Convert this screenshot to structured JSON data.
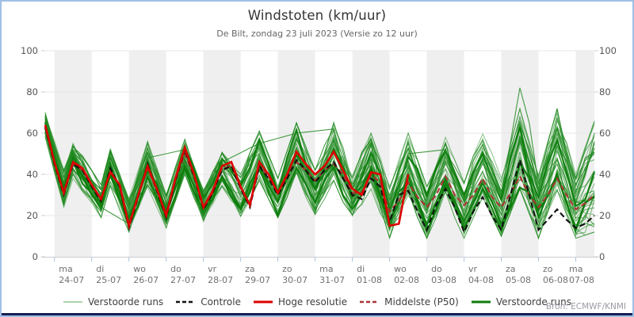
{
  "source_credit": "Bron: ECMWF/KNMI",
  "colors": {
    "frame_border": "#9fc0e6",
    "frame_bottom_bar": "#171f54",
    "day_band": "#efefef",
    "gridline": "#e7e7e7",
    "axis_line": "#c9ccd1",
    "day_tick": "#aac2e0",
    "member_green": "#228b22",
    "member_thick_green": "#0c7d0c",
    "hres_red": "#dd0000",
    "control_black": "#111111",
    "p50_darkred": "#aa3333"
  },
  "legend": {
    "items": [
      {
        "label": "Verstoorde runs",
        "color": "#abd3ab",
        "style": "solid",
        "width": 2
      },
      {
        "label": "Controle",
        "color": "#111111",
        "style": "dashed",
        "width": 2.5
      },
      {
        "label": "Hoge resolutie",
        "color": "#dd0000",
        "style": "solid",
        "width": 3
      },
      {
        "label": "Middelste (P50)",
        "color": "#aa3333",
        "style": "dashed",
        "width": 2.5
      },
      {
        "label": "Verstoorde runs",
        "color": "#0c7d0c",
        "style": "solid",
        "width": 3
      }
    ]
  },
  "chart_data": {
    "type": "line",
    "title": "Windstoten (km/uur)",
    "subtitle": "De Bilt, zondag 23 juli 2023 (Versie zo 12 uur)",
    "ylim": [
      0,
      100
    ],
    "y_ticks": [
      0,
      20,
      40,
      60,
      80,
      100
    ],
    "grid": true,
    "legend_position": "bottom",
    "x_days": [
      {
        "day": "ma",
        "date": "24-07"
      },
      {
        "day": "di",
        "date": "25-07"
      },
      {
        "day": "wo",
        "date": "26-07"
      },
      {
        "day": "do",
        "date": "27-07"
      },
      {
        "day": "vr",
        "date": "28-07"
      },
      {
        "day": "za",
        "date": "29-07"
      },
      {
        "day": "zo",
        "date": "30-07"
      },
      {
        "day": "ma",
        "date": "31-07"
      },
      {
        "day": "di",
        "date": "01-08"
      },
      {
        "day": "wo",
        "date": "02-08"
      },
      {
        "day": "do",
        "date": "03-08"
      },
      {
        "day": "vr",
        "date": "04-08"
      },
      {
        "day": "za",
        "date": "05-08"
      },
      {
        "day": "zo",
        "date": "06-08"
      },
      {
        "day": "ma",
        "date": "07-08"
      }
    ],
    "time": {
      "steps": 60,
      "steps_per_day": 4,
      "first_day_boundary_step": 1,
      "hours_per_step": 6
    },
    "series": [
      {
        "name": "Hoge resolutie",
        "style": "solid",
        "color": "#dd0000",
        "width": 2.6,
        "vertices": [
          [
            0,
            64
          ],
          [
            1,
            46
          ],
          [
            2,
            31
          ],
          [
            3,
            46
          ],
          [
            4,
            43
          ],
          [
            5,
            35
          ],
          [
            6,
            28
          ],
          [
            7,
            41
          ],
          [
            8,
            35
          ],
          [
            9,
            15
          ],
          [
            10,
            30
          ],
          [
            11,
            44
          ],
          [
            12,
            33
          ],
          [
            13,
            20
          ],
          [
            14,
            38
          ],
          [
            15,
            53
          ],
          [
            16,
            40
          ],
          [
            17,
            24
          ],
          [
            18,
            32
          ],
          [
            19,
            44
          ],
          [
            20,
            46
          ],
          [
            21,
            34
          ],
          [
            22,
            25
          ],
          [
            23,
            46
          ],
          [
            24,
            40
          ],
          [
            25,
            31
          ],
          [
            26,
            40
          ],
          [
            27,
            51
          ],
          [
            28,
            45
          ],
          [
            29,
            40
          ],
          [
            30,
            44
          ],
          [
            31,
            51
          ],
          [
            32,
            42
          ],
          [
            33,
            33
          ],
          [
            34,
            30
          ],
          [
            35,
            41
          ],
          [
            36,
            40
          ],
          [
            37,
            15
          ],
          [
            38,
            16
          ],
          [
            39,
            40
          ]
        ]
      },
      {
        "name": "Controle",
        "style": "dashed",
        "color": "#111111",
        "width": 2.1,
        "vertices": [
          [
            0,
            63
          ],
          [
            1,
            45
          ],
          [
            2,
            30
          ],
          [
            3,
            45
          ],
          [
            4,
            42
          ],
          [
            5,
            34
          ],
          [
            6,
            27
          ],
          [
            7,
            43
          ],
          [
            8,
            34
          ],
          [
            9,
            14
          ],
          [
            10,
            29
          ],
          [
            11,
            45
          ],
          [
            12,
            32
          ],
          [
            13,
            19
          ],
          [
            14,
            37
          ],
          [
            15,
            52
          ],
          [
            16,
            39
          ],
          [
            17,
            23
          ],
          [
            18,
            31
          ],
          [
            19,
            42
          ],
          [
            20,
            44
          ],
          [
            21,
            33
          ],
          [
            22,
            24
          ],
          [
            23,
            44
          ],
          [
            24,
            38
          ],
          [
            25,
            30
          ],
          [
            26,
            38
          ],
          [
            27,
            47
          ],
          [
            28,
            42
          ],
          [
            29,
            36
          ],
          [
            30,
            42
          ],
          [
            31,
            46
          ],
          [
            32,
            38
          ],
          [
            33,
            30
          ],
          [
            34,
            28
          ],
          [
            35,
            38
          ],
          [
            36,
            34
          ],
          [
            37,
            17
          ],
          [
            38,
            30
          ],
          [
            39,
            32
          ],
          [
            40,
            22
          ],
          [
            41,
            13
          ],
          [
            42,
            25
          ],
          [
            43,
            33
          ],
          [
            44,
            24
          ],
          [
            45,
            12
          ],
          [
            46,
            22
          ],
          [
            47,
            29
          ],
          [
            48,
            20
          ],
          [
            49,
            13
          ],
          [
            50,
            30
          ],
          [
            51,
            47
          ],
          [
            52,
            30
          ],
          [
            53,
            13
          ],
          [
            54,
            18
          ],
          [
            55,
            23
          ],
          [
            56,
            18
          ],
          [
            57,
            14
          ],
          [
            58,
            16
          ],
          [
            59,
            20
          ]
        ]
      },
      {
        "name": "Middelste (P50)",
        "style": "dashed",
        "color": "#aa3333",
        "width": 2.1,
        "vertices": [
          [
            0,
            63
          ],
          [
            1,
            46
          ],
          [
            2,
            31
          ],
          [
            3,
            45
          ],
          [
            4,
            42
          ],
          [
            5,
            35
          ],
          [
            6,
            28
          ],
          [
            7,
            42
          ],
          [
            8,
            34
          ],
          [
            9,
            16
          ],
          [
            10,
            30
          ],
          [
            11,
            43
          ],
          [
            12,
            32
          ],
          [
            13,
            21
          ],
          [
            14,
            37
          ],
          [
            15,
            50
          ],
          [
            16,
            39
          ],
          [
            17,
            24
          ],
          [
            18,
            31
          ],
          [
            19,
            43
          ],
          [
            20,
            44
          ],
          [
            21,
            33
          ],
          [
            22,
            25
          ],
          [
            23,
            44
          ],
          [
            24,
            39
          ],
          [
            25,
            31
          ],
          [
            26,
            39
          ],
          [
            27,
            46
          ],
          [
            28,
            42
          ],
          [
            29,
            37
          ],
          [
            30,
            42
          ],
          [
            31,
            45
          ],
          [
            32,
            40
          ],
          [
            33,
            31
          ],
          [
            34,
            31
          ],
          [
            35,
            40
          ],
          [
            36,
            36
          ],
          [
            37,
            22
          ],
          [
            38,
            27
          ],
          [
            39,
            36
          ],
          [
            40,
            29
          ],
          [
            41,
            24
          ],
          [
            42,
            30
          ],
          [
            43,
            39
          ],
          [
            44,
            30
          ],
          [
            45,
            25
          ],
          [
            46,
            30
          ],
          [
            47,
            38
          ],
          [
            48,
            29
          ],
          [
            49,
            24
          ],
          [
            50,
            31
          ],
          [
            51,
            39
          ],
          [
            52,
            30
          ],
          [
            53,
            24
          ],
          [
            54,
            30
          ],
          [
            55,
            38
          ],
          [
            56,
            30
          ],
          [
            57,
            23
          ],
          [
            58,
            26
          ],
          [
            59,
            30
          ]
        ]
      }
    ],
    "ensemble": {
      "name": "Verstoorde runs",
      "count": 40,
      "thick_count": 3,
      "color": "#228b22",
      "thick_color": "#0c7d0c",
      "envelope_max": [
        [
          0,
          70
        ],
        [
          2,
          42
        ],
        [
          3,
          56
        ],
        [
          6,
          35
        ],
        [
          7,
          52
        ],
        [
          9,
          28
        ],
        [
          11,
          56
        ],
        [
          13,
          30
        ],
        [
          15,
          57
        ],
        [
          17,
          33
        ],
        [
          19,
          52
        ],
        [
          21,
          40
        ],
        [
          23,
          61
        ],
        [
          25,
          38
        ],
        [
          27,
          65
        ],
        [
          29,
          42
        ],
        [
          31,
          66
        ],
        [
          33,
          40
        ],
        [
          35,
          62
        ],
        [
          37,
          34
        ],
        [
          39,
          60
        ],
        [
          41,
          34
        ],
        [
          43,
          58
        ],
        [
          45,
          36
        ],
        [
          47,
          62
        ],
        [
          49,
          38
        ],
        [
          51,
          72
        ],
        [
          53,
          40
        ],
        [
          55,
          72
        ],
        [
          57,
          40
        ],
        [
          59,
          66
        ]
      ],
      "envelope_min": [
        [
          0,
          58
        ],
        [
          2,
          24
        ],
        [
          3,
          38
        ],
        [
          6,
          19
        ],
        [
          7,
          33
        ],
        [
          9,
          12
        ],
        [
          11,
          34
        ],
        [
          13,
          14
        ],
        [
          15,
          40
        ],
        [
          17,
          17
        ],
        [
          19,
          34
        ],
        [
          21,
          18
        ],
        [
          23,
          37
        ],
        [
          25,
          19
        ],
        [
          27,
          39
        ],
        [
          29,
          19
        ],
        [
          31,
          37
        ],
        [
          33,
          16
        ],
        [
          35,
          33
        ],
        [
          37,
          9
        ],
        [
          39,
          29
        ],
        [
          41,
          9
        ],
        [
          43,
          29
        ],
        [
          45,
          9
        ],
        [
          47,
          29
        ],
        [
          49,
          10
        ],
        [
          51,
          33
        ],
        [
          53,
          9
        ],
        [
          55,
          32
        ],
        [
          57,
          9
        ],
        [
          59,
          12
        ]
      ],
      "outlier_vertices": [
        [
          0,
          67
        ],
        [
          2,
          30
        ],
        [
          3,
          50
        ],
        [
          6,
          24
        ],
        [
          9,
          16
        ],
        [
          11,
          48
        ],
        [
          15,
          52
        ],
        [
          17,
          20
        ],
        [
          19,
          46
        ],
        [
          23,
          55
        ],
        [
          27,
          60
        ],
        [
          31,
          62
        ],
        [
          33,
          25
        ],
        [
          35,
          55
        ],
        [
          37,
          14
        ],
        [
          39,
          50
        ],
        [
          43,
          52
        ],
        [
          45,
          20
        ],
        [
          47,
          48
        ],
        [
          49,
          30
        ],
        [
          51,
          82
        ],
        [
          52,
          65
        ],
        [
          53,
          35
        ],
        [
          55,
          62
        ],
        [
          57,
          26
        ],
        [
          59,
          55
        ]
      ]
    }
  }
}
